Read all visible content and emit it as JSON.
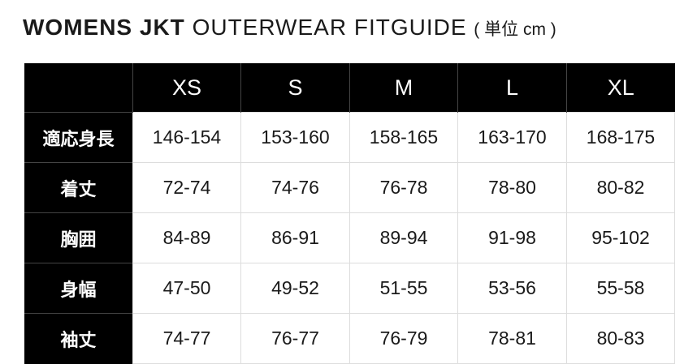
{
  "title": {
    "bold": "WOMENS JKT",
    "regular": "OUTERWEAR FITGUIDE",
    "unit": "( 単位 cm )"
  },
  "table": {
    "columns": [
      "XS",
      "S",
      "M",
      "L",
      "XL"
    ],
    "rows": [
      {
        "label": "適応身長",
        "values": [
          "146-154",
          "153-160",
          "158-165",
          "163-170",
          "168-175"
        ]
      },
      {
        "label": "着丈",
        "values": [
          "72-74",
          "74-76",
          "76-78",
          "78-80",
          "80-82"
        ]
      },
      {
        "label": "胸囲",
        "values": [
          "84-89",
          "86-91",
          "89-94",
          "91-98",
          "95-102"
        ]
      },
      {
        "label": "身幅",
        "values": [
          "47-50",
          "49-52",
          "51-55",
          "53-56",
          "55-58"
        ]
      },
      {
        "label": "袖丈",
        "values": [
          "74-77",
          "76-77",
          "76-79",
          "78-81",
          "80-83"
        ]
      }
    ]
  }
}
